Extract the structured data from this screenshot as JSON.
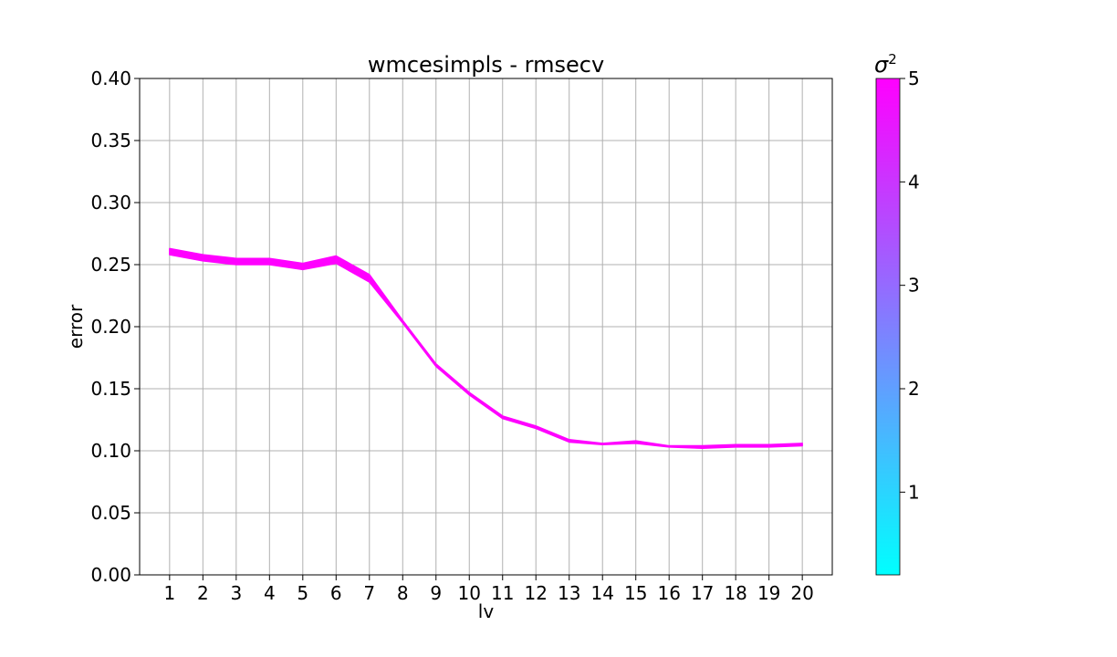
{
  "chart_data": {
    "type": "line",
    "title": "wmcesimpls - rmsecv",
    "xlabel": "lv",
    "ylabel": "error",
    "x": [
      1,
      2,
      3,
      4,
      5,
      6,
      7,
      8,
      9,
      10,
      11,
      12,
      13,
      14,
      15,
      16,
      17,
      18,
      19,
      20
    ],
    "ylim": [
      0.0,
      0.4
    ],
    "yticks": [
      "0.00",
      "0.05",
      "0.10",
      "0.15",
      "0.20",
      "0.25",
      "0.30",
      "0.35",
      "0.40"
    ],
    "xticks": [
      "1",
      "2",
      "3",
      "4",
      "5",
      "6",
      "7",
      "8",
      "9",
      "10",
      "11",
      "12",
      "13",
      "14",
      "15",
      "16",
      "17",
      "18",
      "19",
      "20"
    ],
    "grid": true,
    "band": {
      "upper": [
        0.263,
        0.258,
        0.255,
        0.255,
        0.251,
        0.257,
        0.242,
        0.205,
        0.17,
        0.147,
        0.128,
        0.12,
        0.109,
        0.106,
        0.108,
        0.104,
        0.104,
        0.105,
        0.105,
        0.106
      ],
      "lower": [
        0.258,
        0.253,
        0.25,
        0.25,
        0.246,
        0.251,
        0.236,
        0.203,
        0.168,
        0.145,
        0.126,
        0.118,
        0.107,
        0.105,
        0.106,
        0.103,
        0.102,
        0.103,
        0.103,
        0.104
      ]
    },
    "series_color": "#ff00ff",
    "colorbar": {
      "label": "σ²",
      "label_base": "σ",
      "label_sup": "2",
      "range": [
        0.2,
        5
      ],
      "ticks": [
        "1",
        "2",
        "3",
        "4",
        "5"
      ],
      "color_low": "#00ffff",
      "color_high": "#ff00ff"
    }
  }
}
